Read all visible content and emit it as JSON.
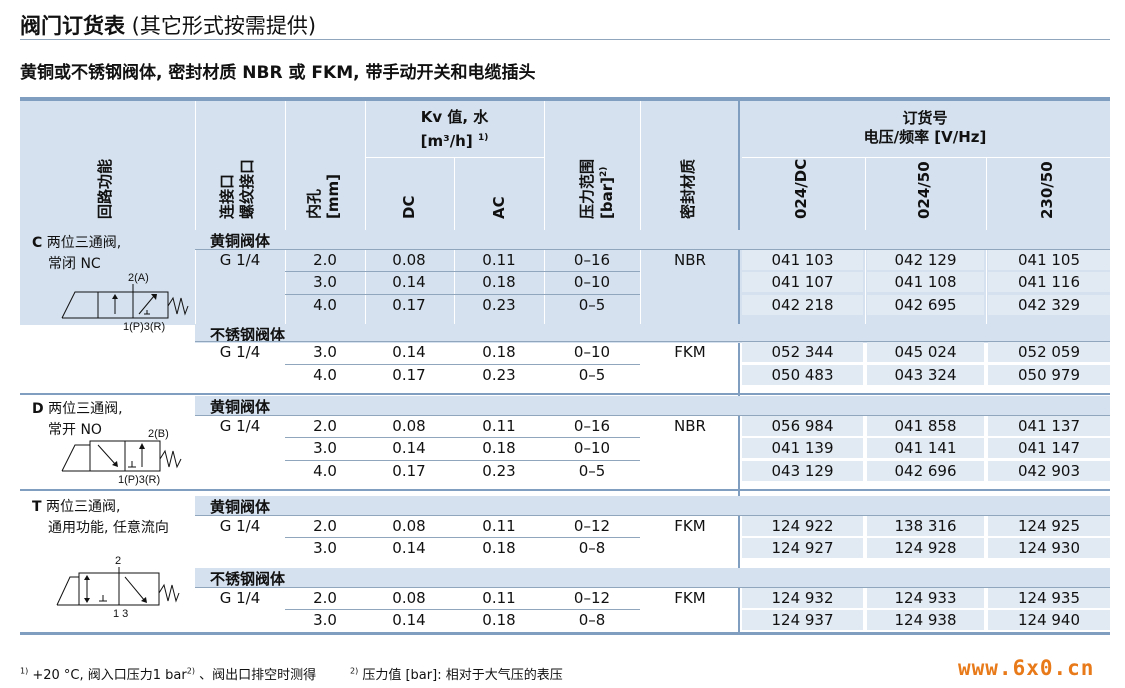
{
  "title": {
    "bold": "阀门订货表",
    "rest": " (其它形式按需提供)"
  },
  "subtitle": "黄铜或不锈钢阀体, 密封材质 NBR 或 FKM, 带手动开关和电缆插头",
  "headers": {
    "circuit": "回路功能",
    "port_line1": "连接口",
    "port_line2": "螺纹接口",
    "bore_line1": "内孔",
    "bore_line2": "[mm]",
    "kv_line1": "Kv 值, 水",
    "kv_line2": "[m³/h]",
    "kv_note": "1)",
    "dc": "DC",
    "ac": "AC",
    "pressure_line1": "压力范围",
    "pressure_line2": "[bar]",
    "pressure_note": "2)",
    "seal": "密封材质",
    "order_line1": "订货号",
    "order_line2": "电压/频率 [V/Hz]",
    "v1": "024/DC",
    "v2": "024/50",
    "v3": "230/50"
  },
  "functions": {
    "C": {
      "letter": "C",
      "l1": " 两位三通阀,",
      "l2": "常闭 NC",
      "p2": "2(A)",
      "p13": "1(P)3(R)"
    },
    "D": {
      "letter": "D",
      "l1": " 两位三通阀,",
      "l2": "常开 NO",
      "p2": "2(B)",
      "p13": "1(P)3(R)"
    },
    "T": {
      "letter": "T",
      "l1": " 两位三通阀,",
      "l2": "通用功能, 任意流向",
      "p2": "2",
      "p13": "1  3"
    }
  },
  "groups": [
    {
      "label": "黄铜阀体",
      "port": "G 1/4",
      "seal": "NBR",
      "rows": [
        {
          "bore": "2.0",
          "dc": "0.08",
          "ac": "0.11",
          "p": "0–16",
          "o1": "041 103",
          "o2": "042 129",
          "o3": "041 105"
        },
        {
          "bore": "3.0",
          "dc": "0.14",
          "ac": "0.18",
          "p": "0–10",
          "o1": "041 107",
          "o2": "041 108",
          "o3": "041 116"
        },
        {
          "bore": "4.0",
          "dc": "0.17",
          "ac": "0.23",
          "p": "0–5",
          "o1": "042 218",
          "o2": "042 695",
          "o3": "042 329"
        }
      ]
    },
    {
      "label": "不锈钢阀体",
      "port": "G 1/4",
      "seal": "FKM",
      "rows": [
        {
          "bore": "3.0",
          "dc": "0.14",
          "ac": "0.18",
          "p": "0–10",
          "o1": "052 344",
          "o2": "045 024",
          "o3": "052 059"
        },
        {
          "bore": "4.0",
          "dc": "0.17",
          "ac": "0.23",
          "p": "0–5",
          "o1": "050 483",
          "o2": "043 324",
          "o3": "050 979"
        }
      ]
    },
    {
      "label": "黄铜阀体",
      "port": "G 1/4",
      "seal": "NBR",
      "rows": [
        {
          "bore": "2.0",
          "dc": "0.08",
          "ac": "0.11",
          "p": "0–16",
          "o1": "056 984",
          "o2": "041 858",
          "o3": "041 137"
        },
        {
          "bore": "3.0",
          "dc": "0.14",
          "ac": "0.18",
          "p": "0–10",
          "o1": "041 139",
          "o2": "041 141",
          "o3": "041 147"
        },
        {
          "bore": "4.0",
          "dc": "0.17",
          "ac": "0.23",
          "p": "0–5",
          "o1": "043 129",
          "o2": "042 696",
          "o3": "042 903"
        }
      ]
    },
    {
      "label": "黄铜阀体",
      "port": "G 1/4",
      "seal": "FKM",
      "rows": [
        {
          "bore": "2.0",
          "dc": "0.08",
          "ac": "0.11",
          "p": "0–12",
          "o1": "124 922",
          "o2": "138 316",
          "o3": "124 925"
        },
        {
          "bore": "3.0",
          "dc": "0.14",
          "ac": "0.18",
          "p": "0–8",
          "o1": "124 927",
          "o2": "124 928",
          "o3": "124 930"
        }
      ]
    },
    {
      "label": "不锈钢阀体",
      "port": "G 1/4",
      "seal": "FKM",
      "rows": [
        {
          "bore": "2.0",
          "dc": "0.08",
          "ac": "0.11",
          "p": "0–12",
          "o1": "124 932",
          "o2": "124 933",
          "o3": "124 935"
        },
        {
          "bore": "3.0",
          "dc": "0.14",
          "ac": "0.18",
          "p": "0–8",
          "o1": "124 937",
          "o2": "124 938",
          "o3": "124 940"
        }
      ]
    }
  ],
  "footnotes": {
    "n1_mark": "1)",
    "n1": " +20 °C, 阀入口压力1 bar",
    "n1_mark2": "2)",
    "n1_tail": " 、阀出口排空时测得",
    "n2_mark": "2)",
    "n2": " 压力值 [bar]: 相对于大气压的表压"
  },
  "watermark": "www.6x0.cn",
  "colors": {
    "header_bg": "#d5e1ee",
    "order_bg": "#e1e9f2",
    "rule": "#7f9ec0",
    "watermark": "#e87a1a"
  }
}
